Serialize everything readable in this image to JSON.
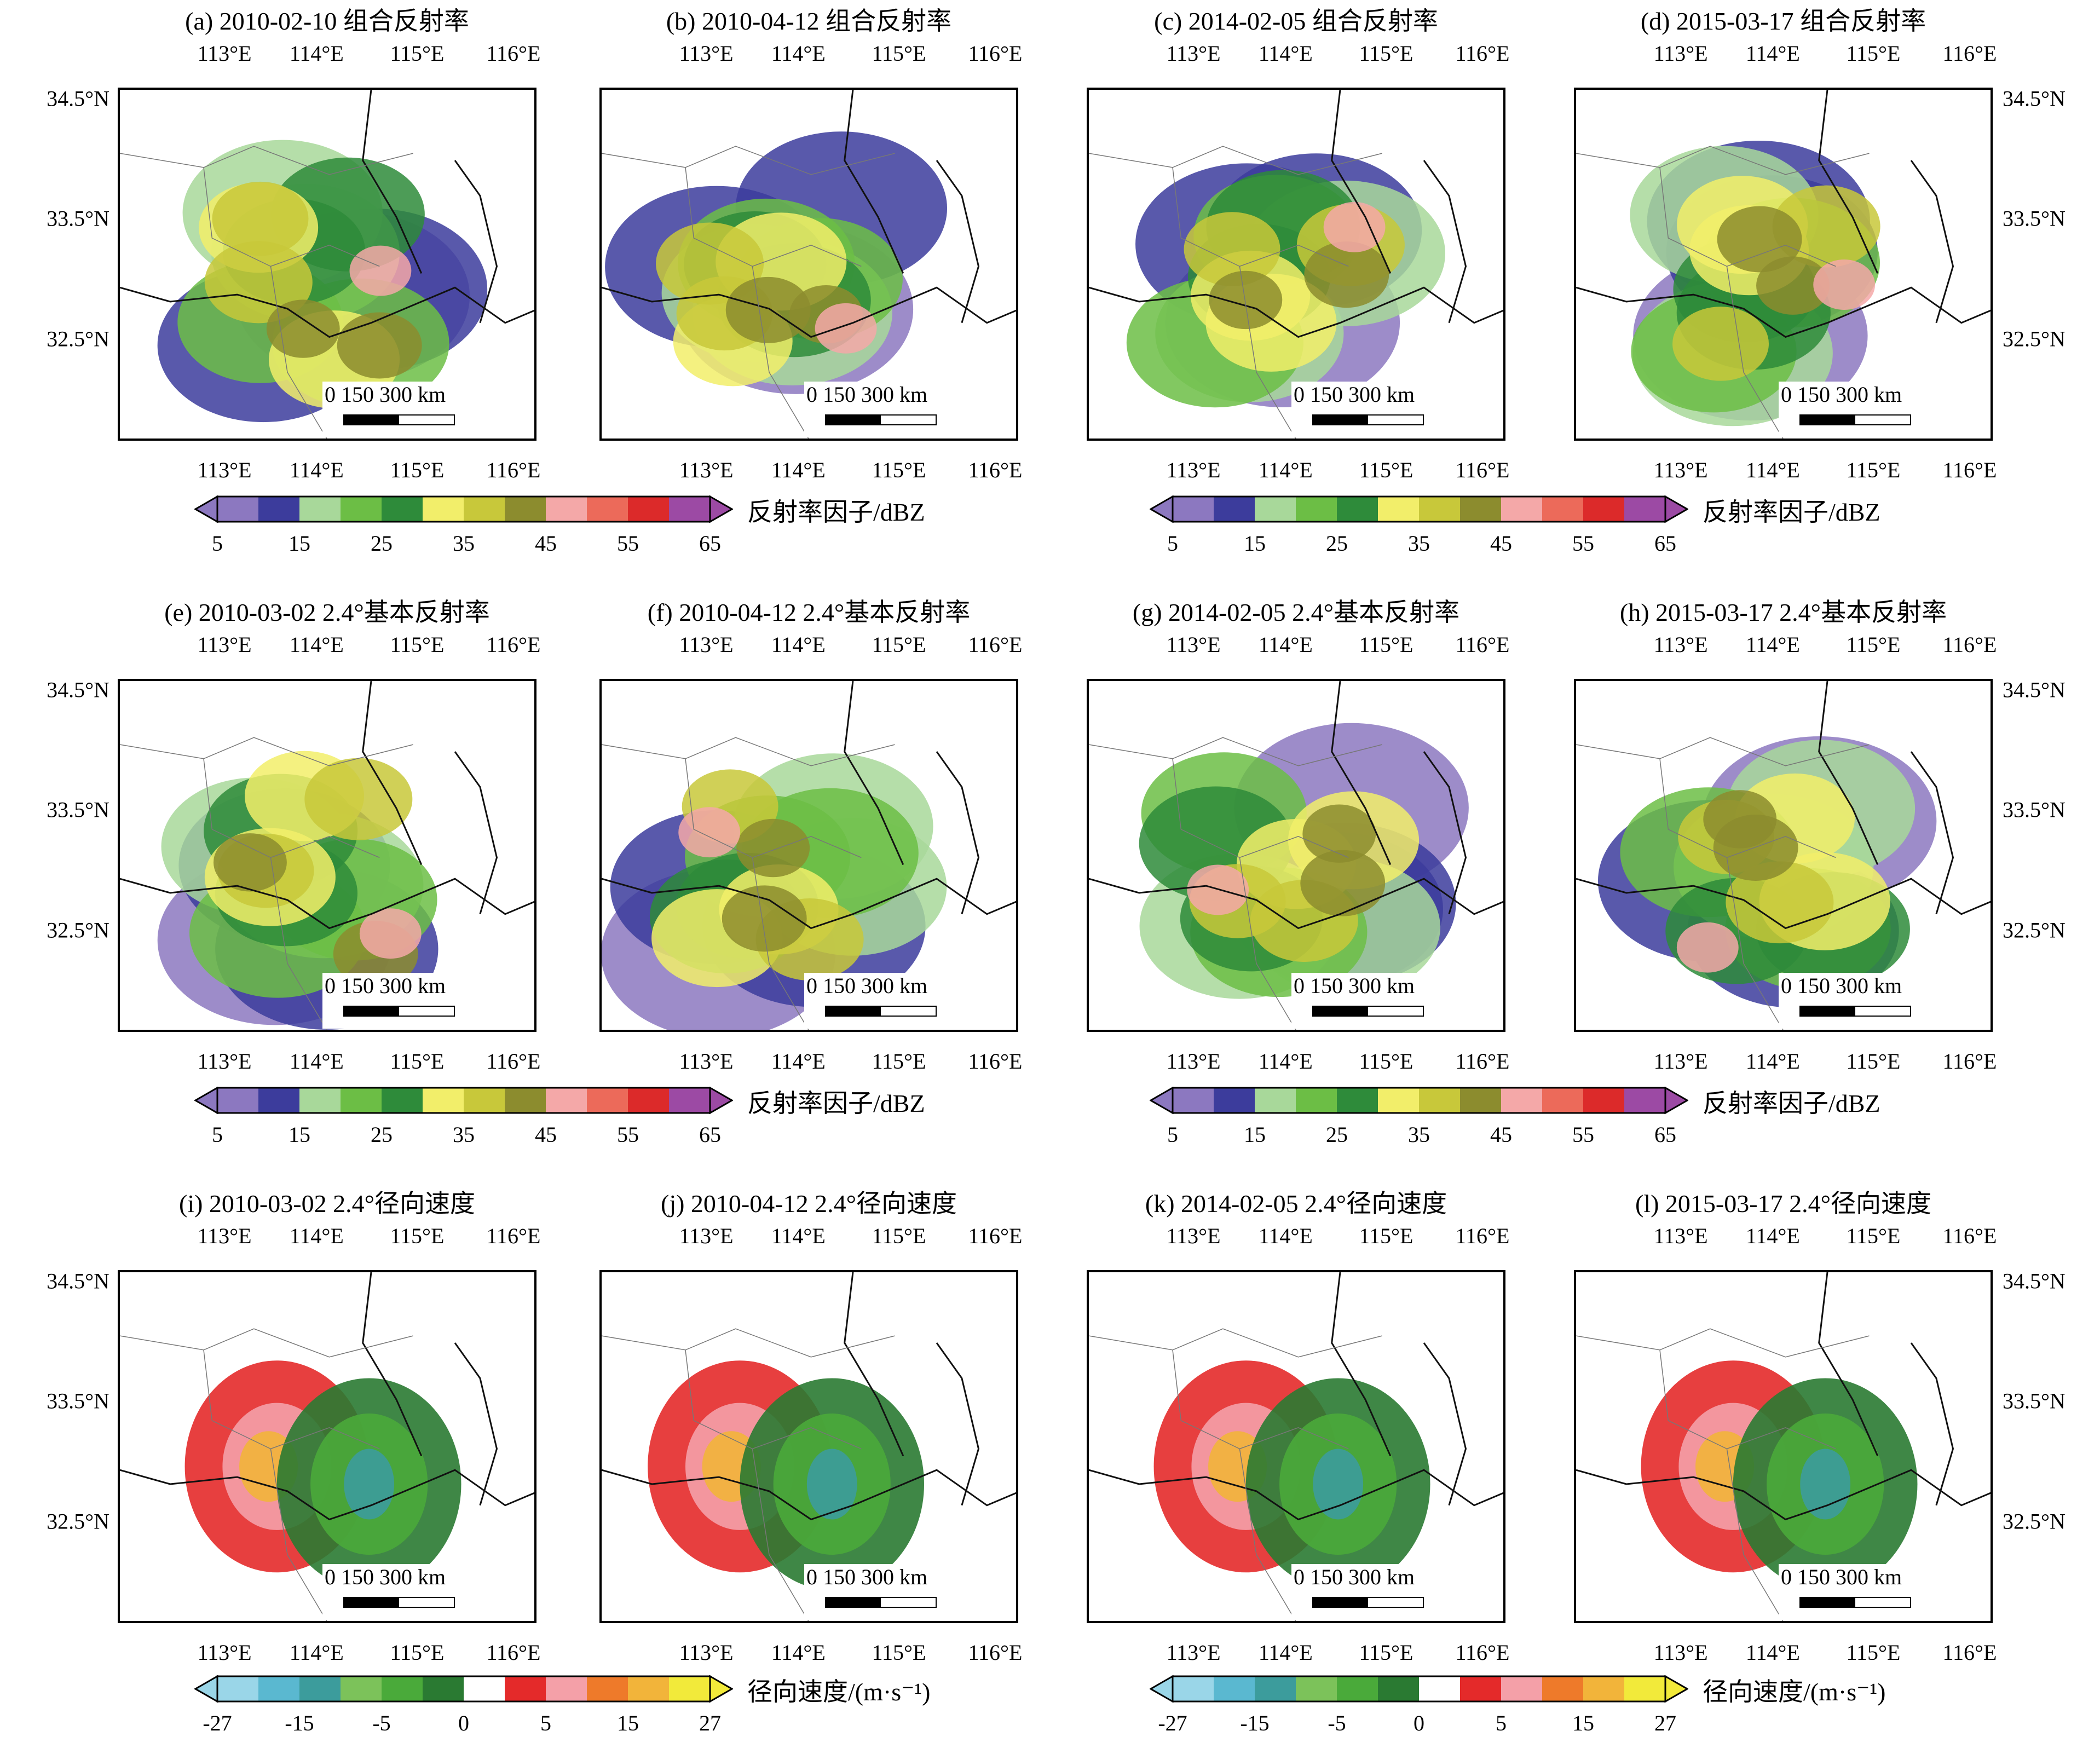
{
  "figure": {
    "lon_ticks": [
      "113°E",
      "114°E",
      "115°E",
      "116°E"
    ],
    "lat_ticks": [
      "34.5°N",
      "33.5°N",
      "32.5°N"
    ],
    "scale_bar": {
      "text": "0  150 300 km"
    }
  },
  "panels": [
    {
      "id": "a",
      "title": "(a) 2010-02-10 组合反射率",
      "field": "reflectivity"
    },
    {
      "id": "b",
      "title": "(b) 2010-04-12 组合反射率",
      "field": "reflectivity"
    },
    {
      "id": "c",
      "title": "(c) 2014-02-05 组合反射率",
      "field": "reflectivity"
    },
    {
      "id": "d",
      "title": "(d) 2015-03-17 组合反射率",
      "field": "reflectivity"
    },
    {
      "id": "e",
      "title": "(e) 2010-03-02 2.4°基本反射率",
      "field": "reflectivity"
    },
    {
      "id": "f",
      "title": "(f) 2010-04-12 2.4°基本反射率",
      "field": "reflectivity"
    },
    {
      "id": "g",
      "title": "(g) 2014-02-05 2.4°基本反射率",
      "field": "reflectivity"
    },
    {
      "id": "h",
      "title": "(h) 2015-03-17 2.4°基本反射率",
      "field": "reflectivity"
    },
    {
      "id": "i",
      "title": "(i) 2010-03-02 2.4°径向速度",
      "field": "velocity"
    },
    {
      "id": "j",
      "title": "(j) 2010-04-12 2.4°径向速度",
      "field": "velocity"
    },
    {
      "id": "k",
      "title": "(k) 2014-02-05 2.4°径向速度",
      "field": "velocity"
    },
    {
      "id": "l",
      "title": "(l) 2015-03-17 2.4°径向速度",
      "field": "velocity"
    }
  ],
  "colorbars": {
    "reflectivity": {
      "label": "反射率因子/dBZ",
      "ticks": [
        "5",
        "15",
        "25",
        "35",
        "45",
        "55",
        "65"
      ],
      "colors": [
        "#8c78c0",
        "#3c3c9c",
        "#a8d89a",
        "#6cbe45",
        "#2e8b3a",
        "#f2ee6a",
        "#c8c83a",
        "#8c8c2e",
        "#f4a8a8",
        "#ec6a5a",
        "#dc2a2a",
        "#9c4aa4"
      ]
    },
    "velocity": {
      "label": "径向速度/(m·s⁻¹)",
      "ticks": [
        "-27",
        "-15",
        "-5",
        "0",
        "5",
        "15",
        "27"
      ],
      "colors": [
        "#9ad6e8",
        "#5ab8d0",
        "#3c9c9c",
        "#7cc25a",
        "#4aaa3a",
        "#2a7a32",
        "#ffffff",
        "#e42a2a",
        "#f4a0a8",
        "#ee7a2a",
        "#f2b43a",
        "#f2ea3a"
      ]
    }
  }
}
